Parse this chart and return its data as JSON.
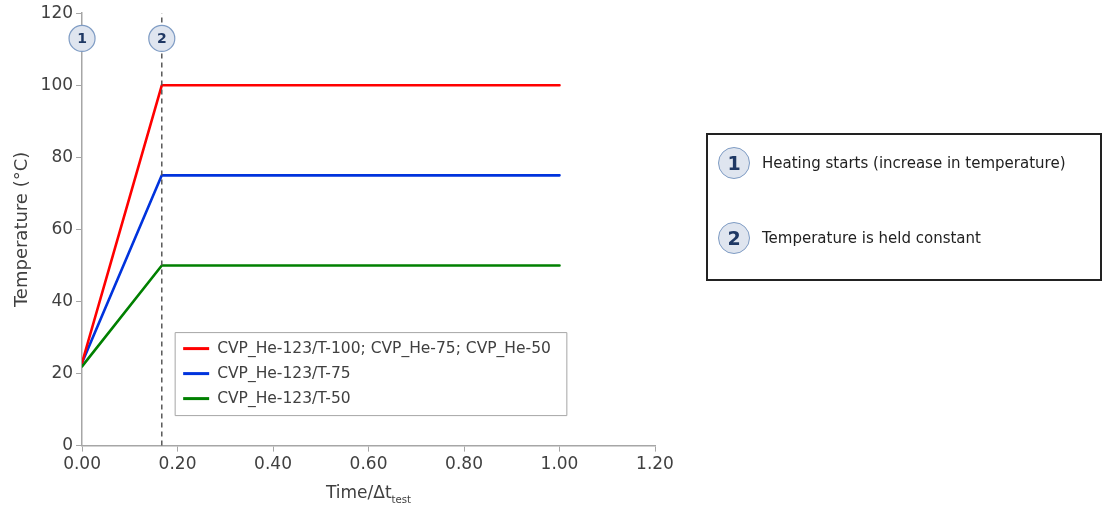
{
  "chart_data": {
    "type": "line",
    "xlabel": "Time/Δt$_{test}$",
    "ylabel": "Temperature (°C)",
    "xlim": [
      0,
      1.2
    ],
    "xticks": [
      {
        "value": 0,
        "label": "0.00"
      },
      {
        "value": 0.2,
        "label": "0.20"
      },
      {
        "value": 0.4,
        "label": "0.40"
      },
      {
        "value": 0.6,
        "label": "0.60"
      },
      {
        "value": 0.8,
        "label": "0.80"
      },
      {
        "value": 1,
        "label": "1.00"
      },
      {
        "value": 1.2,
        "label": "1.20"
      }
    ],
    "ylim": [
      0,
      120
    ],
    "yticks": [
      0,
      20,
      40,
      60,
      80,
      100,
      120
    ],
    "series": [
      {
        "name": "CVP_He-123/T-100; CVP_He-75; CVP_He-50",
        "color": "#ff0000",
        "x": [
          0,
          0.167,
          1
        ],
        "values": [
          23,
          100,
          100
        ]
      },
      {
        "name": "CVP_He-123/T-75",
        "color": "#0033dd",
        "x": [
          0,
          0.167,
          1
        ],
        "values": [
          23,
          75,
          75
        ]
      },
      {
        "name": "CVP_He-123/T-50",
        "color": "#008000",
        "x": [
          0,
          0.167,
          1
        ],
        "values": [
          22,
          50,
          50
        ]
      }
    ],
    "ref_lines": [
      {
        "axis": "x",
        "value": 0.167,
        "color": "#595959",
        "line_style": "dashed"
      }
    ],
    "annotations": [
      {
        "text": "1",
        "x": 0,
        "y": 113
      },
      {
        "text": "2",
        "x": 0.167,
        "y": 113
      },
      "Heating starts (increase in temperature)",
      "Temperature is held constant"
    ],
    "grid": false,
    "legend": "bottom",
    "marker": "none",
    "line_style": "solid"
  }
}
